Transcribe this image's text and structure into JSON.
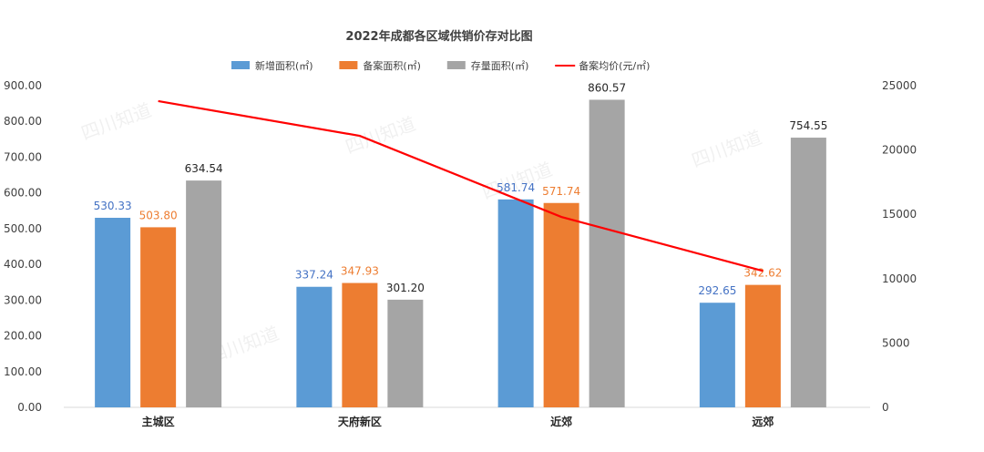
{
  "chart_data": {
    "type": "bar",
    "title": "2022年成都各区域供销价存对比图",
    "categories": [
      "主城区",
      "天府新区",
      "近郊",
      "远郊"
    ],
    "series": [
      {
        "name": "新增面积(㎡)",
        "kind": "bar",
        "axis": "left",
        "color": "#5b9bd5",
        "label_color": "#4472c4",
        "values": [
          530.33,
          337.24,
          581.74,
          292.65
        ],
        "labels": [
          "530.33",
          "337.24",
          "581.74",
          "292.65"
        ]
      },
      {
        "name": "备案面积(㎡)",
        "kind": "bar",
        "axis": "left",
        "color": "#ed7d31",
        "label_color": "#ed7d31",
        "values": [
          503.8,
          347.93,
          571.74,
          342.62
        ],
        "labels": [
          "503.80",
          "347.93",
          "571.74",
          "342.62"
        ]
      },
      {
        "name": "存量面积(㎡)",
        "kind": "bar",
        "axis": "left",
        "color": "#a5a5a5",
        "label_color": "#262626",
        "values": [
          634.54,
          301.2,
          860.57,
          754.55
        ],
        "labels": [
          "634.54",
          "301.20",
          "860.57",
          "754.55"
        ]
      },
      {
        "name": "备案均价(元/㎡)",
        "kind": "line",
        "axis": "right",
        "color": "#ff0000",
        "values": [
          23800,
          21100,
          14800,
          10600
        ]
      }
    ],
    "y_left": {
      "min": 0,
      "max": 900,
      "step": 100,
      "tick_labels": [
        "0.00",
        "100.00",
        "200.00",
        "300.00",
        "400.00",
        "500.00",
        "600.00",
        "700.00",
        "800.00",
        "900.00"
      ]
    },
    "y_right": {
      "min": 0,
      "max": 25000,
      "step": 5000,
      "tick_labels": [
        "0",
        "5000",
        "10000",
        "15000",
        "20000",
        "25000"
      ]
    },
    "legend_position": "top",
    "grid": false,
    "watermark": "四川知道"
  }
}
